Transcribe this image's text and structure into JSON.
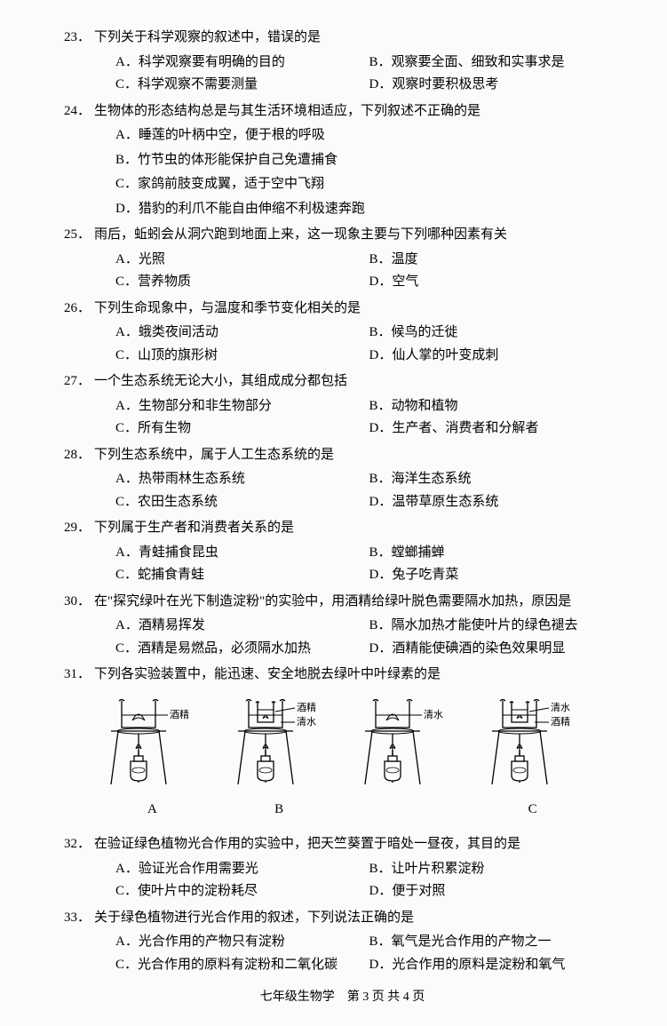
{
  "questions": [
    {
      "num": "23．",
      "stem": "下列关于科学观察的叙述中，错误的是",
      "layout": "2col",
      "A": "A．科学观察要有明确的目的",
      "B": "B．观察要全面、细致和实事求是",
      "C": "C．科学观察不需要测量",
      "D": "D．观察时要积极思考"
    },
    {
      "num": "24．",
      "stem": "生物体的形态结构总是与其生活环境相适应，下列叙述不正确的是",
      "layout": "1col",
      "A": "A．睡莲的叶柄中空，便于根的呼吸",
      "B": "B．竹节虫的体形能保护自己免遭捕食",
      "C": "C．家鸽前肢变成翼，适于空中飞翔",
      "D": "D．猎豹的利爪不能自由伸缩不利极速奔跑"
    },
    {
      "num": "25．",
      "stem": "雨后，蚯蚓会从洞穴跑到地面上来，这一现象主要与下列哪种因素有关",
      "layout": "2col",
      "A": "A．光照",
      "B": "B．温度",
      "C": "C．营养物质",
      "D": "D．空气"
    },
    {
      "num": "26．",
      "stem": "下列生命现象中，与温度和季节变化相关的是",
      "layout": "2col",
      "A": "A．蛾类夜间活动",
      "B": "B．候鸟的迁徙",
      "C": "C．山顶的旗形树",
      "D": "D．仙人掌的叶变成刺"
    },
    {
      "num": "27．",
      "stem": "一个生态系统无论大小，其组成成分都包括",
      "layout": "2col",
      "A": "A．生物部分和非生物部分",
      "B": "B．动物和植物",
      "C": "C．所有生物",
      "D": "D．生产者、消费者和分解者"
    },
    {
      "num": "28．",
      "stem": "下列生态系统中，属于人工生态系统的是",
      "layout": "2col",
      "A": "A．热带雨林生态系统",
      "B": "B．海洋生态系统",
      "C": "C．农田生态系统",
      "D": "D．温带草原生态系统"
    },
    {
      "num": "29．",
      "stem": "下列属于生产者和消费者关系的是",
      "layout": "2col",
      "A": "A．青蛙捕食昆虫",
      "B": "B．螳螂捕蝉",
      "C": "C．蛇捕食青蛙",
      "D": "D．兔子吃青菜"
    },
    {
      "num": "30．",
      "stem": "在\"探究绿叶在光下制造淀粉\"的实验中，用酒精给绿叶脱色需要隔水加热，原因是",
      "layout": "2col",
      "A": "A．酒精易挥发",
      "B": "B．隔水加热才能使叶片的绿色褪去",
      "C": "C．酒精是易燃品，必须隔水加热",
      "D": "D．酒精能使碘酒的染色效果明显"
    },
    {
      "num": "31．",
      "stem": "下列各实验装置中，能迅速、安全地脱去绿叶中叶绿素的是",
      "layout": "diagram"
    },
    {
      "num": "32．",
      "stem": "在验证绿色植物光合作用的实验中，把天竺葵置于暗处一昼夜，其目的是",
      "layout": "2col",
      "A": "A．验证光合作用需要光",
      "B": "B．让叶片积累淀粉",
      "C": "C．使叶片中的淀粉耗尽",
      "D": "D．便于对照"
    },
    {
      "num": "33．",
      "stem": "关于绿色植物进行光合作用的叙述，下列说法正确的是",
      "layout": "2col",
      "A": "A．光合作用的产物只有淀粉",
      "B": "B．氧气是光合作用的产物之一",
      "C": "C．光合作用的原料有淀粉和二氧化碳",
      "D": "D．光合作用的原料是淀粉和氧气"
    }
  ],
  "diagrams": {
    "labels": {
      "alcohol": "酒精",
      "water": "清水"
    },
    "letters": [
      "A",
      "B",
      "",
      "C"
    ],
    "configs": [
      {
        "outer": "alcohol",
        "inner": null
      },
      {
        "outer": "water",
        "inner": "alcohol"
      },
      {
        "outer": "water",
        "inner": null
      },
      {
        "outer": "alcohol",
        "inner": "water"
      }
    ]
  },
  "footer": "七年级生物学　第 3 页 共 4 页",
  "style": {
    "stroke": "#000000",
    "stroke_width": 1.3,
    "font_size": 11
  }
}
